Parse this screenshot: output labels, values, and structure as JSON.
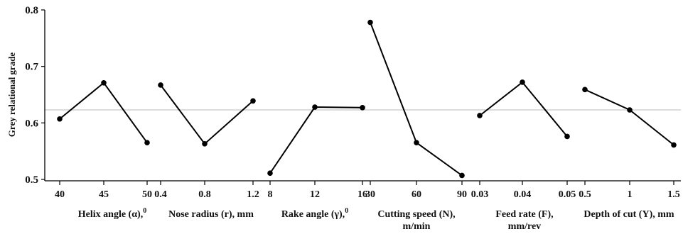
{
  "chart_data": {
    "type": "line",
    "ylabel": "Grey relational grade",
    "ylim": [
      0.5,
      0.8
    ],
    "yticks": [
      "0.5",
      "0.6",
      "0.7",
      "0.8"
    ],
    "reference_line": 0.623,
    "grid": false,
    "colors": {
      "line": "#000000",
      "reference": "#c8c8c8",
      "axis": "#000000"
    },
    "panels": [
      {
        "label": "Helix angle (α),",
        "label_sup": "0",
        "label_line2": "",
        "ticks": [
          "40",
          "45",
          "50"
        ],
        "values": [
          0.607,
          0.671,
          0.565
        ]
      },
      {
        "label": "Nose radius (r), mm",
        "label_sup": "",
        "label_line2": "",
        "ticks": [
          "0.4",
          "0.8",
          "1.2"
        ],
        "values": [
          0.667,
          0.563,
          0.639
        ]
      },
      {
        "label": "Rake angle (γ),",
        "label_sup": "0",
        "label_line2": "",
        "ticks": [
          "8",
          "12",
          "16"
        ],
        "values": [
          0.511,
          0.628,
          0.627
        ]
      },
      {
        "label": "Cutting speed (N),",
        "label_sup": "",
        "label_line2": "m/min",
        "ticks": [
          "30",
          "60",
          "90"
        ],
        "values": [
          0.778,
          0.565,
          0.507
        ]
      },
      {
        "label": "Feed rate (F),",
        "label_sup": "",
        "label_line2": "mm/rev",
        "ticks": [
          "0.03",
          "0.04",
          "0.05"
        ],
        "values": [
          0.613,
          0.672,
          0.576
        ]
      },
      {
        "label": "Depth of cut (Y), mm",
        "label_sup": "",
        "label_line2": "",
        "ticks": [
          "0.5",
          "1",
          "1.5"
        ],
        "values": [
          0.659,
          0.623,
          0.561
        ]
      }
    ]
  }
}
